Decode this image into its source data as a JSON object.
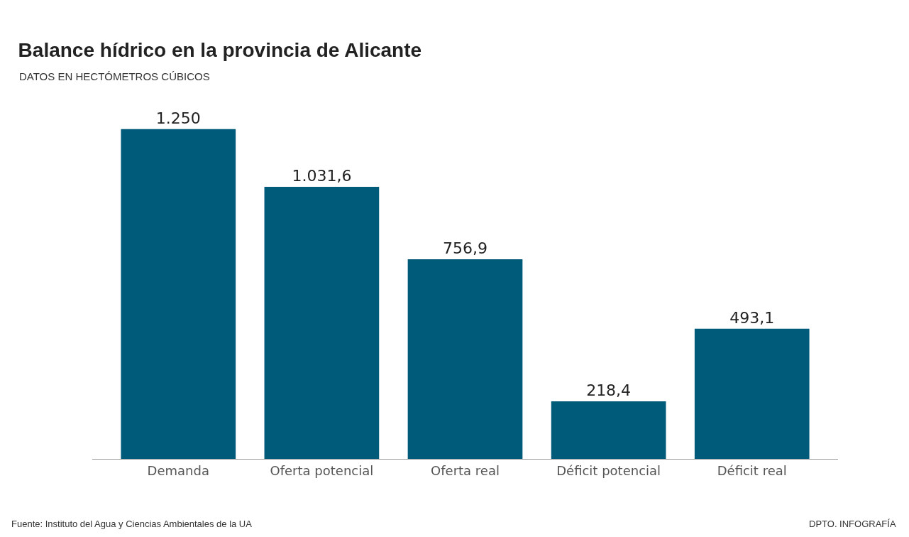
{
  "chart_data": {
    "type": "bar",
    "title": "Balance hídrico en la provincia de Alicante",
    "subtitle": "DATOS EN HECTÓMETROS CÚBICOS",
    "categories": [
      "Demanda",
      "Oferta potencial",
      "Oferta real",
      "Déficit potencial",
      "Déficit real"
    ],
    "values": [
      1250,
      1031.6,
      756.9,
      218.4,
      493.1
    ],
    "value_labels": [
      "1.250",
      "1.031,6",
      "756,9",
      "218,4",
      "493,1"
    ],
    "color": "#005a7a",
    "annotations": [
      "Fuente: Instituto del Agua y Ciencias Ambientales de la UA",
      "DPTO. INFOGRAFÍA"
    ]
  }
}
